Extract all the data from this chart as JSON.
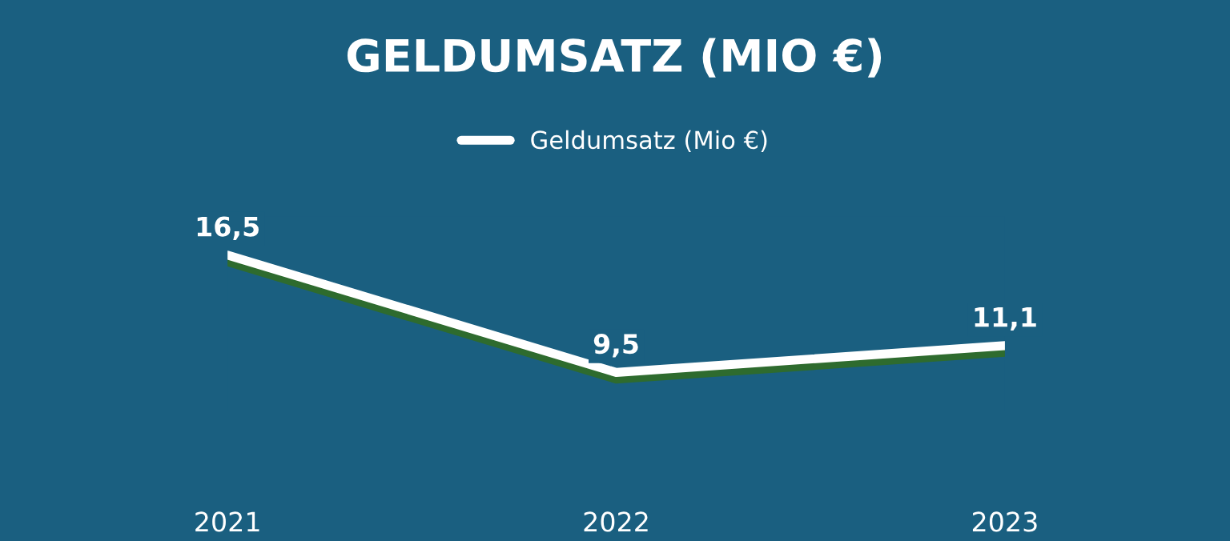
{
  "chart_data": {
    "type": "line",
    "title": "GELDUMSATZ (MIO €)",
    "categories": [
      "2021",
      "2022",
      "2023"
    ],
    "series": [
      {
        "name": "Geldumsatz (Mio €)",
        "color": "#ffffff",
        "values": [
          16.5,
          9.5,
          11.1
        ],
        "value_labels": [
          "16,5",
          "9,5",
          "11,1"
        ]
      }
    ],
    "legend": "top",
    "grid": false,
    "line_style": "solid",
    "tick_labels": "x"
  }
}
